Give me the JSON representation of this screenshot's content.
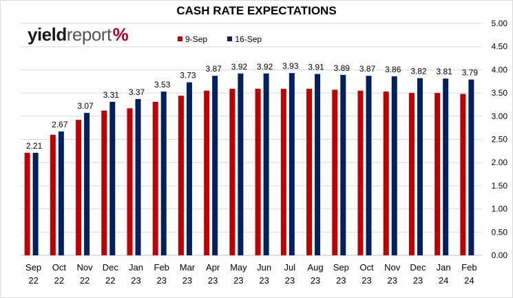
{
  "chart_data": {
    "type": "bar",
    "title": "CASH RATE EXPECTATIONS",
    "categories": [
      [
        "Sep",
        "22"
      ],
      [
        "Oct",
        "22"
      ],
      [
        "Nov",
        "22"
      ],
      [
        "Dec",
        "22"
      ],
      [
        "Jan",
        "23"
      ],
      [
        "Feb",
        "23"
      ],
      [
        "Mar",
        "23"
      ],
      [
        "Apr",
        "23"
      ],
      [
        "May",
        "23"
      ],
      [
        "Jun",
        "23"
      ],
      [
        "Jul",
        "23"
      ],
      [
        "Aug",
        "23"
      ],
      [
        "Sep",
        "23"
      ],
      [
        "Oct",
        "23"
      ],
      [
        "Nov",
        "23"
      ],
      [
        "Dec",
        "23"
      ],
      [
        "Jan",
        "24"
      ],
      [
        "Feb",
        "24"
      ]
    ],
    "series": [
      {
        "name": "9-Sep",
        "color": "#c00000",
        "values": [
          2.21,
          2.6,
          2.92,
          3.12,
          3.17,
          3.31,
          3.44,
          3.55,
          3.59,
          3.59,
          3.59,
          3.59,
          3.57,
          3.55,
          3.53,
          3.5,
          3.5,
          3.48
        ]
      },
      {
        "name": "16-Sep",
        "color": "#002060",
        "values": [
          2.21,
          2.67,
          3.07,
          3.31,
          3.37,
          3.53,
          3.73,
          3.87,
          3.92,
          3.92,
          3.93,
          3.91,
          3.89,
          3.87,
          3.86,
          3.82,
          3.81,
          3.79
        ],
        "data_labels": [
          "2.21",
          "2.67",
          "3.07",
          "3.31",
          "3.37",
          "3.53",
          "3.73",
          "3.87",
          "3.92",
          "3.92",
          "3.93",
          "3.91",
          "3.89",
          "3.87",
          "3.86",
          "3.82",
          "3.81",
          "3.79"
        ]
      }
    ],
    "y_axis": {
      "position": "right",
      "ylim": [
        0,
        5
      ],
      "ticks": [
        "0.00",
        "0.50",
        "1.00",
        "1.50",
        "2.00",
        "2.50",
        "3.00",
        "3.50",
        "4.00",
        "4.50",
        "5.00"
      ]
    },
    "grid": true,
    "legend": "top-center"
  },
  "logo": {
    "part1": "yield",
    "part2": "report",
    "part3": "%"
  },
  "colors": {
    "red": "#c00000",
    "navy": "#002060",
    "grid": "#d9d9d9"
  }
}
